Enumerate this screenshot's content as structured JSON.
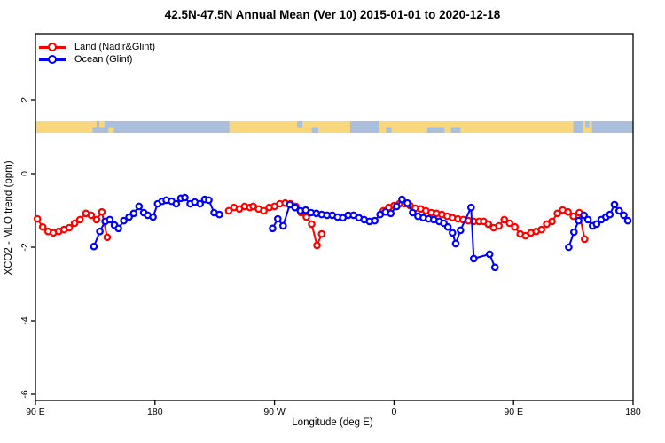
{
  "title": "42.5N-47.5N Annual Mean (Ver 10)   2015-01-01 to 2020-12-18",
  "axes": {
    "x_label": "Longitude (deg E)",
    "y_label": "XCO2 - MLO trend (ppm)",
    "x_ticks": [
      {
        "pos_deg": 0,
        "label": "90 E"
      },
      {
        "pos_deg": 90,
        "label": "180"
      },
      {
        "pos_deg": 180,
        "label": "90 W"
      },
      {
        "pos_deg": 270,
        "label": "0"
      },
      {
        "pos_deg": 360,
        "label": "90 E"
      },
      {
        "pos_deg": 450,
        "label": "180"
      }
    ],
    "y_ticks": [
      {
        "value": 2,
        "label": "2"
      },
      {
        "value": 0,
        "label": "0"
      },
      {
        "value": -2,
        "label": "-2"
      },
      {
        "value": -4,
        "label": "-4"
      },
      {
        "value": -6,
        "label": "-6"
      }
    ]
  },
  "legend": {
    "items": [
      {
        "label": "Land (Nadir&Glint)",
        "color": "#FF0000"
      },
      {
        "label": "Ocean (Glint)",
        "color": "#0000FF"
      }
    ]
  },
  "map_strip": {
    "description": "world land/ocean band at ~45N across plot",
    "ocean_color": "#A9BFDC",
    "land_color": "#F9D77F",
    "y_top": 137,
    "height": 13,
    "land_segments_deg": [
      [
        0,
        46
      ],
      [
        146,
        237
      ],
      [
        259,
        419
      ]
    ],
    "patches": [
      {
        "from": 43,
        "to": 46,
        "color": "ocean",
        "half": "bottom"
      },
      {
        "from": 48,
        "to": 52,
        "color": "land",
        "half": "top"
      },
      {
        "from": 55,
        "to": 59,
        "color": "land",
        "half": "bottom"
      },
      {
        "from": 197,
        "to": 201,
        "color": "ocean",
        "half": "top"
      },
      {
        "from": 208,
        "to": 213,
        "color": "ocean",
        "half": "bottom"
      },
      {
        "from": 264,
        "to": 268,
        "color": "ocean",
        "half": "bottom"
      },
      {
        "from": 295,
        "to": 308,
        "color": "ocean",
        "half": "bottom"
      },
      {
        "from": 313,
        "to": 320,
        "color": "ocean",
        "half": "bottom"
      },
      {
        "from": 405,
        "to": 412,
        "color": "ocean",
        "half": "full"
      },
      {
        "from": 414,
        "to": 417,
        "color": "ocean",
        "half": "top"
      }
    ]
  },
  "chart_data": {
    "type": "line",
    "title": "42.5N-47.5N Annual Mean (Ver 10)   2015-01-01 to 2020-12-18",
    "xlabel": "Longitude (deg E)",
    "ylabel": "XCO2 - MLO trend (ppm)",
    "x_unit": "degrees east of 90E along a 450-degree span (90E..180..90W..0..90E..180)",
    "xlim_deg": [
      0,
      450
    ],
    "ylim": [
      -6.2,
      3.8
    ],
    "grid": false,
    "legend_position": "top-left",
    "series": [
      {
        "name": "Land (Nadir&Glint)",
        "color": "#FF0000",
        "segments": [
          [
            [
              1.5,
              -1.23
            ],
            [
              5.5,
              -1.45
            ],
            [
              9.5,
              -1.57
            ],
            [
              13.5,
              -1.61
            ],
            [
              17.5,
              -1.57
            ],
            [
              21.5,
              -1.52
            ],
            [
              25.5,
              -1.47
            ],
            [
              29.5,
              -1.35
            ],
            [
              33.5,
              -1.25
            ],
            [
              38,
              -1.08
            ],
            [
              42,
              -1.13
            ],
            [
              46,
              -1.25
            ],
            [
              50,
              -1.04
            ],
            [
              54,
              -1.73
            ]
          ],
          [
            [
              145.5,
              -1.01
            ],
            [
              149.5,
              -0.92
            ],
            [
              153.5,
              -0.96
            ],
            [
              157.5,
              -0.89
            ],
            [
              161.5,
              -0.92
            ],
            [
              164,
              -0.89
            ],
            [
              168,
              -0.96
            ],
            [
              172,
              -1.01
            ],
            [
              176,
              -0.92
            ],
            [
              180,
              -0.89
            ],
            [
              184,
              -0.82
            ],
            [
              188,
              -0.8
            ],
            [
              192,
              -0.82
            ],
            [
              196,
              -0.89
            ],
            [
              200,
              -1.06
            ],
            [
              204,
              -1.18
            ],
            [
              208,
              -1.37
            ],
            [
              212,
              -1.95
            ],
            [
              215.5,
              -1.64
            ]
          ],
          [
            [
              262,
              -1.01
            ],
            [
              266,
              -0.92
            ],
            [
              270,
              -0.87
            ],
            [
              274,
              -0.82
            ],
            [
              278,
              -0.82
            ],
            [
              282,
              -0.87
            ],
            [
              286,
              -0.94
            ],
            [
              290,
              -0.96
            ],
            [
              294,
              -1.01
            ],
            [
              298,
              -1.06
            ],
            [
              302,
              -1.08
            ],
            [
              306,
              -1.11
            ],
            [
              310,
              -1.16
            ],
            [
              314,
              -1.2
            ],
            [
              318,
              -1.23
            ],
            [
              322,
              -1.25
            ],
            [
              326,
              -1.28
            ],
            [
              330,
              -1.3
            ],
            [
              334,
              -1.3
            ],
            [
              337.5,
              -1.3
            ],
            [
              341,
              -1.37
            ],
            [
              345,
              -1.47
            ],
            [
              349,
              -1.42
            ],
            [
              353,
              -1.25
            ],
            [
              357,
              -1.35
            ],
            [
              361,
              -1.45
            ],
            [
              365,
              -1.64
            ],
            [
              369,
              -1.69
            ],
            [
              373,
              -1.61
            ],
            [
              377,
              -1.57
            ],
            [
              381,
              -1.52
            ],
            [
              385,
              -1.37
            ],
            [
              389,
              -1.3
            ],
            [
              393,
              -1.08
            ],
            [
              397,
              -0.99
            ],
            [
              401,
              -1.04
            ],
            [
              405,
              -1.16
            ],
            [
              409.5,
              -1.06
            ],
            [
              413.5,
              -1.78
            ]
          ]
        ]
      },
      {
        "name": "Ocean (Glint)",
        "color": "#0000FF",
        "segments": [
          [
            [
              44,
              -1.98
            ],
            [
              48.5,
              -1.57
            ],
            [
              52.5,
              -1.3
            ],
            [
              56,
              -1.25
            ],
            [
              59.5,
              -1.4
            ],
            [
              62.5,
              -1.49
            ],
            [
              66.5,
              -1.28
            ],
            [
              70.5,
              -1.18
            ],
            [
              74,
              -1.08
            ],
            [
              78,
              -0.89
            ],
            [
              81.5,
              -1.06
            ],
            [
              84.5,
              -1.13
            ],
            [
              88.5,
              -1.18
            ],
            [
              92,
              -0.82
            ],
            [
              95.5,
              -0.75
            ],
            [
              98.5,
              -0.72
            ],
            [
              102.5,
              -0.75
            ],
            [
              106,
              -0.82
            ],
            [
              109.5,
              -0.67
            ],
            [
              112.5,
              -0.65
            ],
            [
              116.5,
              -0.82
            ],
            [
              120,
              -0.77
            ],
            [
              124,
              -0.82
            ],
            [
              127.5,
              -0.7
            ],
            [
              130.5,
              -0.72
            ],
            [
              134.5,
              -1.06
            ],
            [
              138.5,
              -1.11
            ]
          ],
          [
            [
              178.5,
              -1.49
            ],
            [
              182.5,
              -1.23
            ],
            [
              186.5,
              -1.42
            ],
            [
              191.5,
              -0.84
            ],
            [
              195.5,
              -0.92
            ],
            [
              199.5,
              -1.01
            ],
            [
              203.5,
              -0.99
            ],
            [
              207.5,
              -1.06
            ],
            [
              211.5,
              -1.08
            ],
            [
              215.5,
              -1.11
            ],
            [
              219.5,
              -1.13
            ],
            [
              223.5,
              -1.13
            ],
            [
              227.5,
              -1.18
            ],
            [
              231.5,
              -1.2
            ],
            [
              235.5,
              -1.13
            ],
            [
              239.5,
              -1.13
            ],
            [
              243.5,
              -1.2
            ],
            [
              247.5,
              -1.25
            ],
            [
              251.5,
              -1.3
            ],
            [
              255.5,
              -1.28
            ],
            [
              259.5,
              -1.11
            ],
            [
              263.5,
              -1.04
            ],
            [
              267.5,
              -1.08
            ],
            [
              272,
              -0.89
            ],
            [
              276,
              -0.7
            ],
            [
              280,
              -0.8
            ],
            [
              284,
              -1.06
            ],
            [
              288,
              -1.16
            ],
            [
              292,
              -1.2
            ],
            [
              296,
              -1.23
            ],
            [
              300,
              -1.25
            ],
            [
              304,
              -1.3
            ],
            [
              307.5,
              -1.35
            ],
            [
              310.5,
              -1.45
            ],
            [
              314,
              -1.61
            ],
            [
              316.5,
              -1.9
            ],
            [
              320,
              -1.54
            ],
            [
              328,
              -0.92
            ],
            [
              330,
              -2.31
            ],
            [
              342,
              -2.19
            ],
            [
              346,
              -2.55
            ]
          ],
          [
            [
              401.5,
              -2.0
            ],
            [
              405.5,
              -1.59
            ],
            [
              409,
              -1.28
            ],
            [
              413,
              -1.13
            ],
            [
              416,
              -1.25
            ],
            [
              419.5,
              -1.42
            ],
            [
              422.5,
              -1.37
            ],
            [
              426,
              -1.25
            ],
            [
              429.5,
              -1.18
            ],
            [
              432.5,
              -1.11
            ],
            [
              436,
              -0.84
            ],
            [
              439.5,
              -1.01
            ],
            [
              443,
              -1.13
            ],
            [
              446,
              -1.28
            ]
          ]
        ]
      }
    ]
  }
}
